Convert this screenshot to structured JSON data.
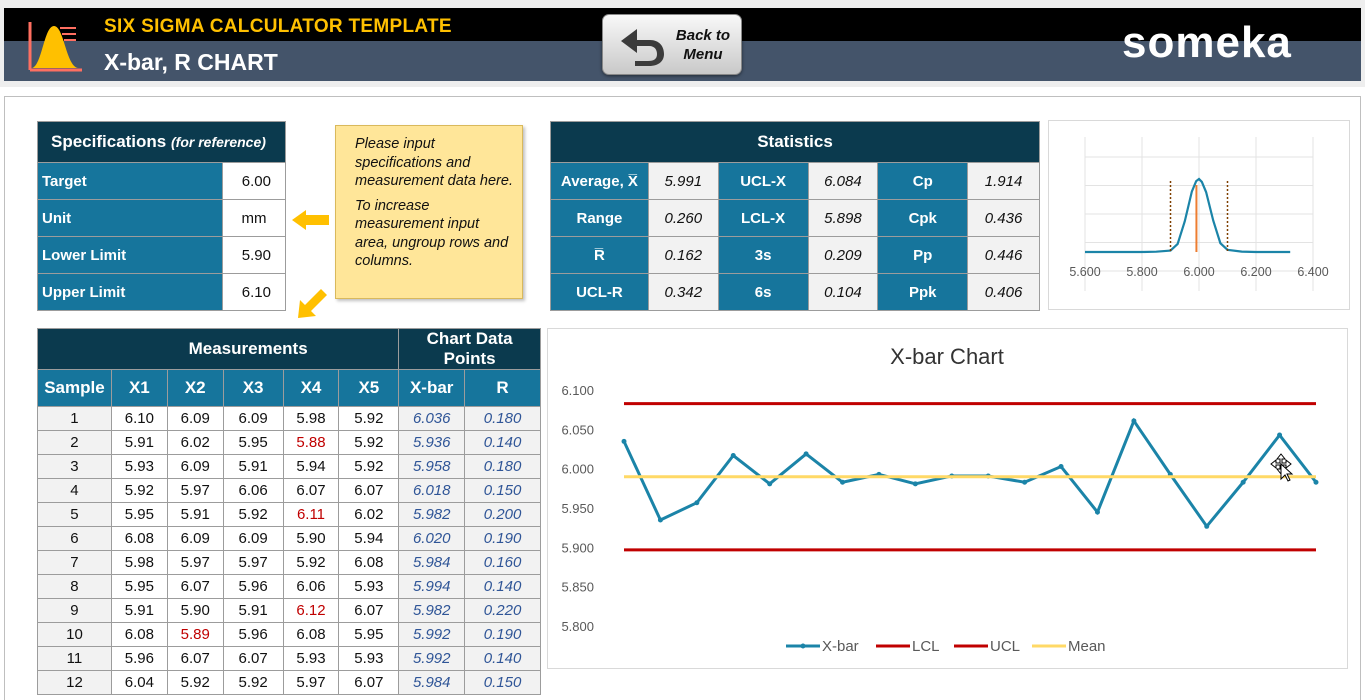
{
  "header": {
    "app_title": "SIX SIGMA CALCULATOR TEMPLATE",
    "page_title": "X-bar, R CHART",
    "back_button": "Back to Menu",
    "brand": "someka"
  },
  "specifications": {
    "title": "Specifications",
    "subtitle": "(for reference)",
    "rows": [
      {
        "label": "Target",
        "value": "6.00"
      },
      {
        "label": "Unit",
        "value": "mm"
      },
      {
        "label": "Lower Limit",
        "value": "5.90"
      },
      {
        "label": "Upper Limit",
        "value": "6.10"
      }
    ]
  },
  "note": {
    "line1": "Please input specifications and measurement data here.",
    "line2": "To increase measurement input area, ungroup rows and columns."
  },
  "statistics": {
    "title": "Statistics",
    "rows": [
      [
        "Average, X̅",
        "5.991",
        "UCL-X",
        "6.084",
        "Cp",
        "1.914"
      ],
      [
        "Range",
        "0.260",
        "LCL-X",
        "5.898",
        "Cpk",
        "0.436"
      ],
      [
        "R̅",
        "0.162",
        "3s",
        "0.209",
        "Pp",
        "0.446"
      ],
      [
        "UCL-R",
        "0.342",
        "6s",
        "0.104",
        "Ppk",
        "0.406"
      ]
    ]
  },
  "measurements": {
    "group_label": "Measurements",
    "chart_group_label": "Chart Data Points",
    "columns": [
      "Sample",
      "X1",
      "X2",
      "X3",
      "X4",
      "X5",
      "X-bar",
      "R"
    ],
    "rows": [
      [
        "1",
        "6.10",
        "6.09",
        "6.09",
        "5.98",
        "5.92",
        "6.036",
        "0.180"
      ],
      [
        "2",
        "5.91",
        "6.02",
        "5.95",
        "5.88",
        "5.92",
        "5.936",
        "0.140"
      ],
      [
        "3",
        "5.93",
        "6.09",
        "5.91",
        "5.94",
        "5.92",
        "5.958",
        "0.180"
      ],
      [
        "4",
        "5.92",
        "5.97",
        "6.06",
        "6.07",
        "6.07",
        "6.018",
        "0.150"
      ],
      [
        "5",
        "5.95",
        "5.91",
        "5.92",
        "6.11",
        "6.02",
        "5.982",
        "0.200"
      ],
      [
        "6",
        "6.08",
        "6.09",
        "6.09",
        "5.90",
        "5.94",
        "6.020",
        "0.190"
      ],
      [
        "7",
        "5.98",
        "5.97",
        "5.97",
        "5.92",
        "6.08",
        "5.984",
        "0.160"
      ],
      [
        "8",
        "5.95",
        "6.07",
        "5.96",
        "6.06",
        "5.93",
        "5.994",
        "0.140"
      ],
      [
        "9",
        "5.91",
        "5.90",
        "5.91",
        "6.12",
        "6.07",
        "5.982",
        "0.220"
      ],
      [
        "10",
        "6.08",
        "5.89",
        "5.96",
        "6.08",
        "5.95",
        "5.992",
        "0.190"
      ],
      [
        "11",
        "5.96",
        "6.07",
        "6.07",
        "5.93",
        "5.93",
        "5.992",
        "0.140"
      ],
      [
        "12",
        "6.04",
        "5.92",
        "5.92",
        "5.97",
        "6.07",
        "5.984",
        "0.150"
      ]
    ],
    "out_of_spec": [
      [
        1,
        4
      ],
      [
        4,
        4
      ],
      [
        8,
        4
      ],
      [
        9,
        2
      ]
    ]
  },
  "colors": {
    "dark_header": "#0b3a4e",
    "label_blue": "#16759c",
    "series": "#1b84a8",
    "limit": "#c00000",
    "mean": "#ffd966",
    "note": "#ffe699",
    "brand_yellow": "#ffc000"
  },
  "chart_data": [
    {
      "type": "line",
      "title": "X-bar Chart",
      "ylim": [
        5.8,
        6.1
      ],
      "yticks": [
        "5.800",
        "5.850",
        "5.900",
        "5.950",
        "6.000",
        "6.050",
        "6.100"
      ],
      "legend_position": "bottom",
      "series": [
        {
          "name": "X-bar",
          "values": [
            6.036,
            5.936,
            5.958,
            6.018,
            5.982,
            6.02,
            5.984,
            5.994,
            5.982,
            5.992,
            5.992,
            5.984,
            6.004,
            5.946,
            6.062,
            5.994,
            5.928,
            5.984,
            6.044,
            5.984
          ]
        },
        {
          "name": "LCL",
          "value": 5.898
        },
        {
          "name": "UCL",
          "value": 6.084
        },
        {
          "name": "Mean",
          "value": 5.991
        }
      ]
    },
    {
      "type": "line",
      "x_range": [
        5.6,
        6.4
      ],
      "xticks": [
        "5.600",
        "5.800",
        "6.000",
        "6.200",
        "6.400"
      ],
      "series": [
        {
          "x": [
            5.6,
            5.8,
            5.85,
            5.9,
            5.925,
            5.95,
            5.975,
            5.99,
            6.0,
            6.01,
            6.025,
            6.05,
            6.075,
            6.1,
            6.15,
            6.2,
            6.3,
            6.32
          ],
          "y": [
            0,
            0,
            0.004,
            0.02,
            0.11,
            0.42,
            0.83,
            0.97,
            1.0,
            0.96,
            0.82,
            0.43,
            0.12,
            0.03,
            0.005,
            0,
            0,
            0
          ]
        }
      ],
      "markers": {
        "lower_limit": 5.9,
        "mean": 5.991,
        "upper_limit": 6.1
      }
    }
  ]
}
